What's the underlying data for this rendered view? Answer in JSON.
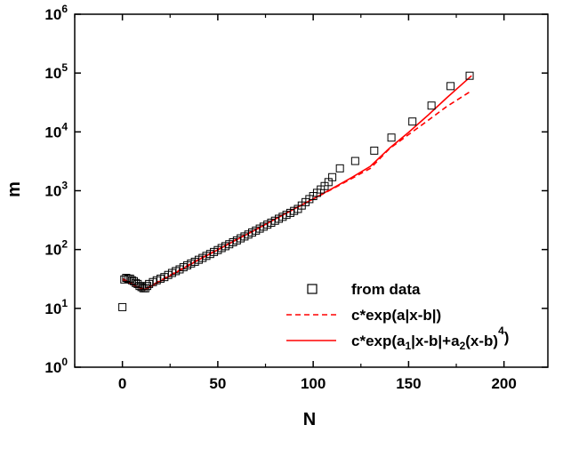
{
  "chart_data": {
    "type": "scatter",
    "title": "",
    "xlabel": "N",
    "ylabel": "m",
    "xlim": [
      -25,
      223
    ],
    "ylim_log10": [
      0,
      6
    ],
    "y_scale": "log",
    "x_ticks": [
      0,
      50,
      100,
      150,
      200
    ],
    "x_tick_labels": [
      "0",
      "50",
      "100",
      "150",
      "200"
    ],
    "y_ticks_exp": [
      0,
      1,
      2,
      3,
      4,
      5,
      6
    ],
    "y_tick_base": "10",
    "legend_position": "bottom-right",
    "colors": {
      "data": "#000000",
      "fit": "#ff0000",
      "axis": "#000000"
    },
    "series": [
      {
        "name": "from data",
        "style": "open-square",
        "points": [
          [
            0,
            10.5
          ],
          [
            1,
            31
          ],
          [
            2,
            33
          ],
          [
            3,
            32
          ],
          [
            4,
            32
          ],
          [
            5,
            30
          ],
          [
            6,
            29
          ],
          [
            7,
            27
          ],
          [
            8,
            26
          ],
          [
            9,
            24
          ],
          [
            10,
            23
          ],
          [
            11,
            22
          ],
          [
            12,
            22
          ],
          [
            13,
            24
          ],
          [
            14,
            26
          ],
          [
            16,
            28
          ],
          [
            18,
            30
          ],
          [
            20,
            32
          ],
          [
            22,
            34
          ],
          [
            24,
            37
          ],
          [
            26,
            40
          ],
          [
            28,
            43
          ],
          [
            30,
            46
          ],
          [
            32,
            50
          ],
          [
            34,
            54
          ],
          [
            36,
            58
          ],
          [
            38,
            62
          ],
          [
            40,
            67
          ],
          [
            42,
            72
          ],
          [
            44,
            78
          ],
          [
            46,
            84
          ],
          [
            48,
            91
          ],
          [
            50,
            98
          ],
          [
            52,
            106
          ],
          [
            54,
            114
          ],
          [
            56,
            123
          ],
          [
            58,
            133
          ],
          [
            60,
            143
          ],
          [
            62,
            155
          ],
          [
            64,
            167
          ],
          [
            66,
            180
          ],
          [
            68,
            195
          ],
          [
            70,
            210
          ],
          [
            72,
            227
          ],
          [
            74,
            245
          ],
          [
            76,
            265
          ],
          [
            78,
            286
          ],
          [
            80,
            309
          ],
          [
            82,
            334
          ],
          [
            84,
            360
          ],
          [
            86,
            389
          ],
          [
            88,
            420
          ],
          [
            90,
            454
          ],
          [
            92,
            490
          ],
          [
            94,
            560
          ],
          [
            96,
            640
          ],
          [
            98,
            720
          ],
          [
            100,
            810
          ],
          [
            102,
            920
          ],
          [
            104,
            1050
          ],
          [
            106,
            1200
          ],
          [
            108,
            1400
          ],
          [
            110,
            1700
          ],
          [
            114,
            2400
          ],
          [
            122,
            3200
          ],
          [
            132,
            4800
          ],
          [
            141,
            8000
          ],
          [
            152,
            15000
          ],
          [
            162,
            28000
          ],
          [
            172,
            60000
          ],
          [
            182,
            90000
          ]
        ]
      },
      {
        "name": "c*exp(a|x-b|)",
        "style": "dashed",
        "points": [
          [
            0,
            32
          ],
          [
            5,
            26.5
          ],
          [
            10,
            22
          ],
          [
            12,
            21.5
          ],
          [
            20,
            30
          ],
          [
            30,
            45
          ],
          [
            40,
            68
          ],
          [
            50,
            100
          ],
          [
            60,
            150
          ],
          [
            70,
            220
          ],
          [
            80,
            330
          ],
          [
            90,
            490
          ],
          [
            100,
            720
          ],
          [
            110,
            1070
          ],
          [
            120,
            1600
          ],
          [
            130,
            2400
          ],
          [
            140,
            5200
          ],
          [
            150,
            9000
          ],
          [
            160,
            15500
          ],
          [
            170,
            27000
          ],
          [
            183,
            50000
          ]
        ]
      },
      {
        "name": "c*exp(a1|x-b|+a2(x-b)4)",
        "style": "solid",
        "points": [
          [
            0,
            30
          ],
          [
            5,
            25.5
          ],
          [
            10,
            21.5
          ],
          [
            12,
            21
          ],
          [
            20,
            29
          ],
          [
            30,
            44
          ],
          [
            40,
            67
          ],
          [
            50,
            99
          ],
          [
            60,
            148
          ],
          [
            70,
            218
          ],
          [
            80,
            328
          ],
          [
            90,
            490
          ],
          [
            100,
            725
          ],
          [
            110,
            1090
          ],
          [
            120,
            1660
          ],
          [
            130,
            2600
          ],
          [
            140,
            5300
          ],
          [
            150,
            9800
          ],
          [
            160,
            19000
          ],
          [
            170,
            38000
          ],
          [
            183,
            90000
          ]
        ]
      }
    ],
    "legend": [
      {
        "label": "from data",
        "style": "open-square"
      },
      {
        "label": "c*exp(a|x-b|)",
        "style": "dashed"
      },
      {
        "label_parts": [
          "c*exp(a",
          "1",
          "|x-b|+a",
          "2",
          "(x-b)",
          "4",
          ")"
        ],
        "style": "solid"
      }
    ]
  }
}
